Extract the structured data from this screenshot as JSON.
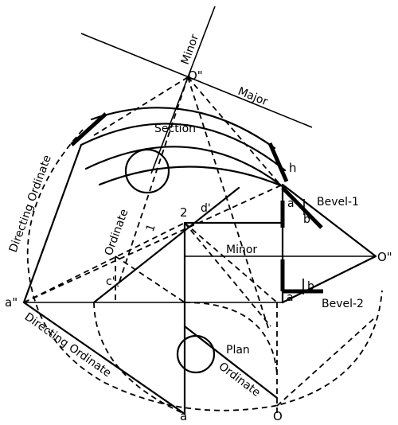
{
  "labels": {
    "o_double_top": "O\"",
    "o_double_right": "O\"",
    "minor_top": "Minor",
    "major": "Major",
    "section": "Section",
    "h": "h",
    "a_upper": "a",
    "b_upper": "b",
    "bevel_1": "Bevel-1",
    "two": "2",
    "d_prime": "d'",
    "one": "1",
    "ordinate_mid": "Ordinate",
    "directing_ordinate_left": "Directing Ordinate",
    "minor_mid": "Minor",
    "c_prime": "c'",
    "a_double": "a\"",
    "a_lower": "a",
    "b_lower": "b",
    "bevel_2": "Bevel-2",
    "directing_ordinate_bottom": "Directing Ordinate",
    "plan": "Plan",
    "ordinate_bottom": "Ordinate",
    "a_bottom": "a",
    "o_bottom": "O"
  }
}
